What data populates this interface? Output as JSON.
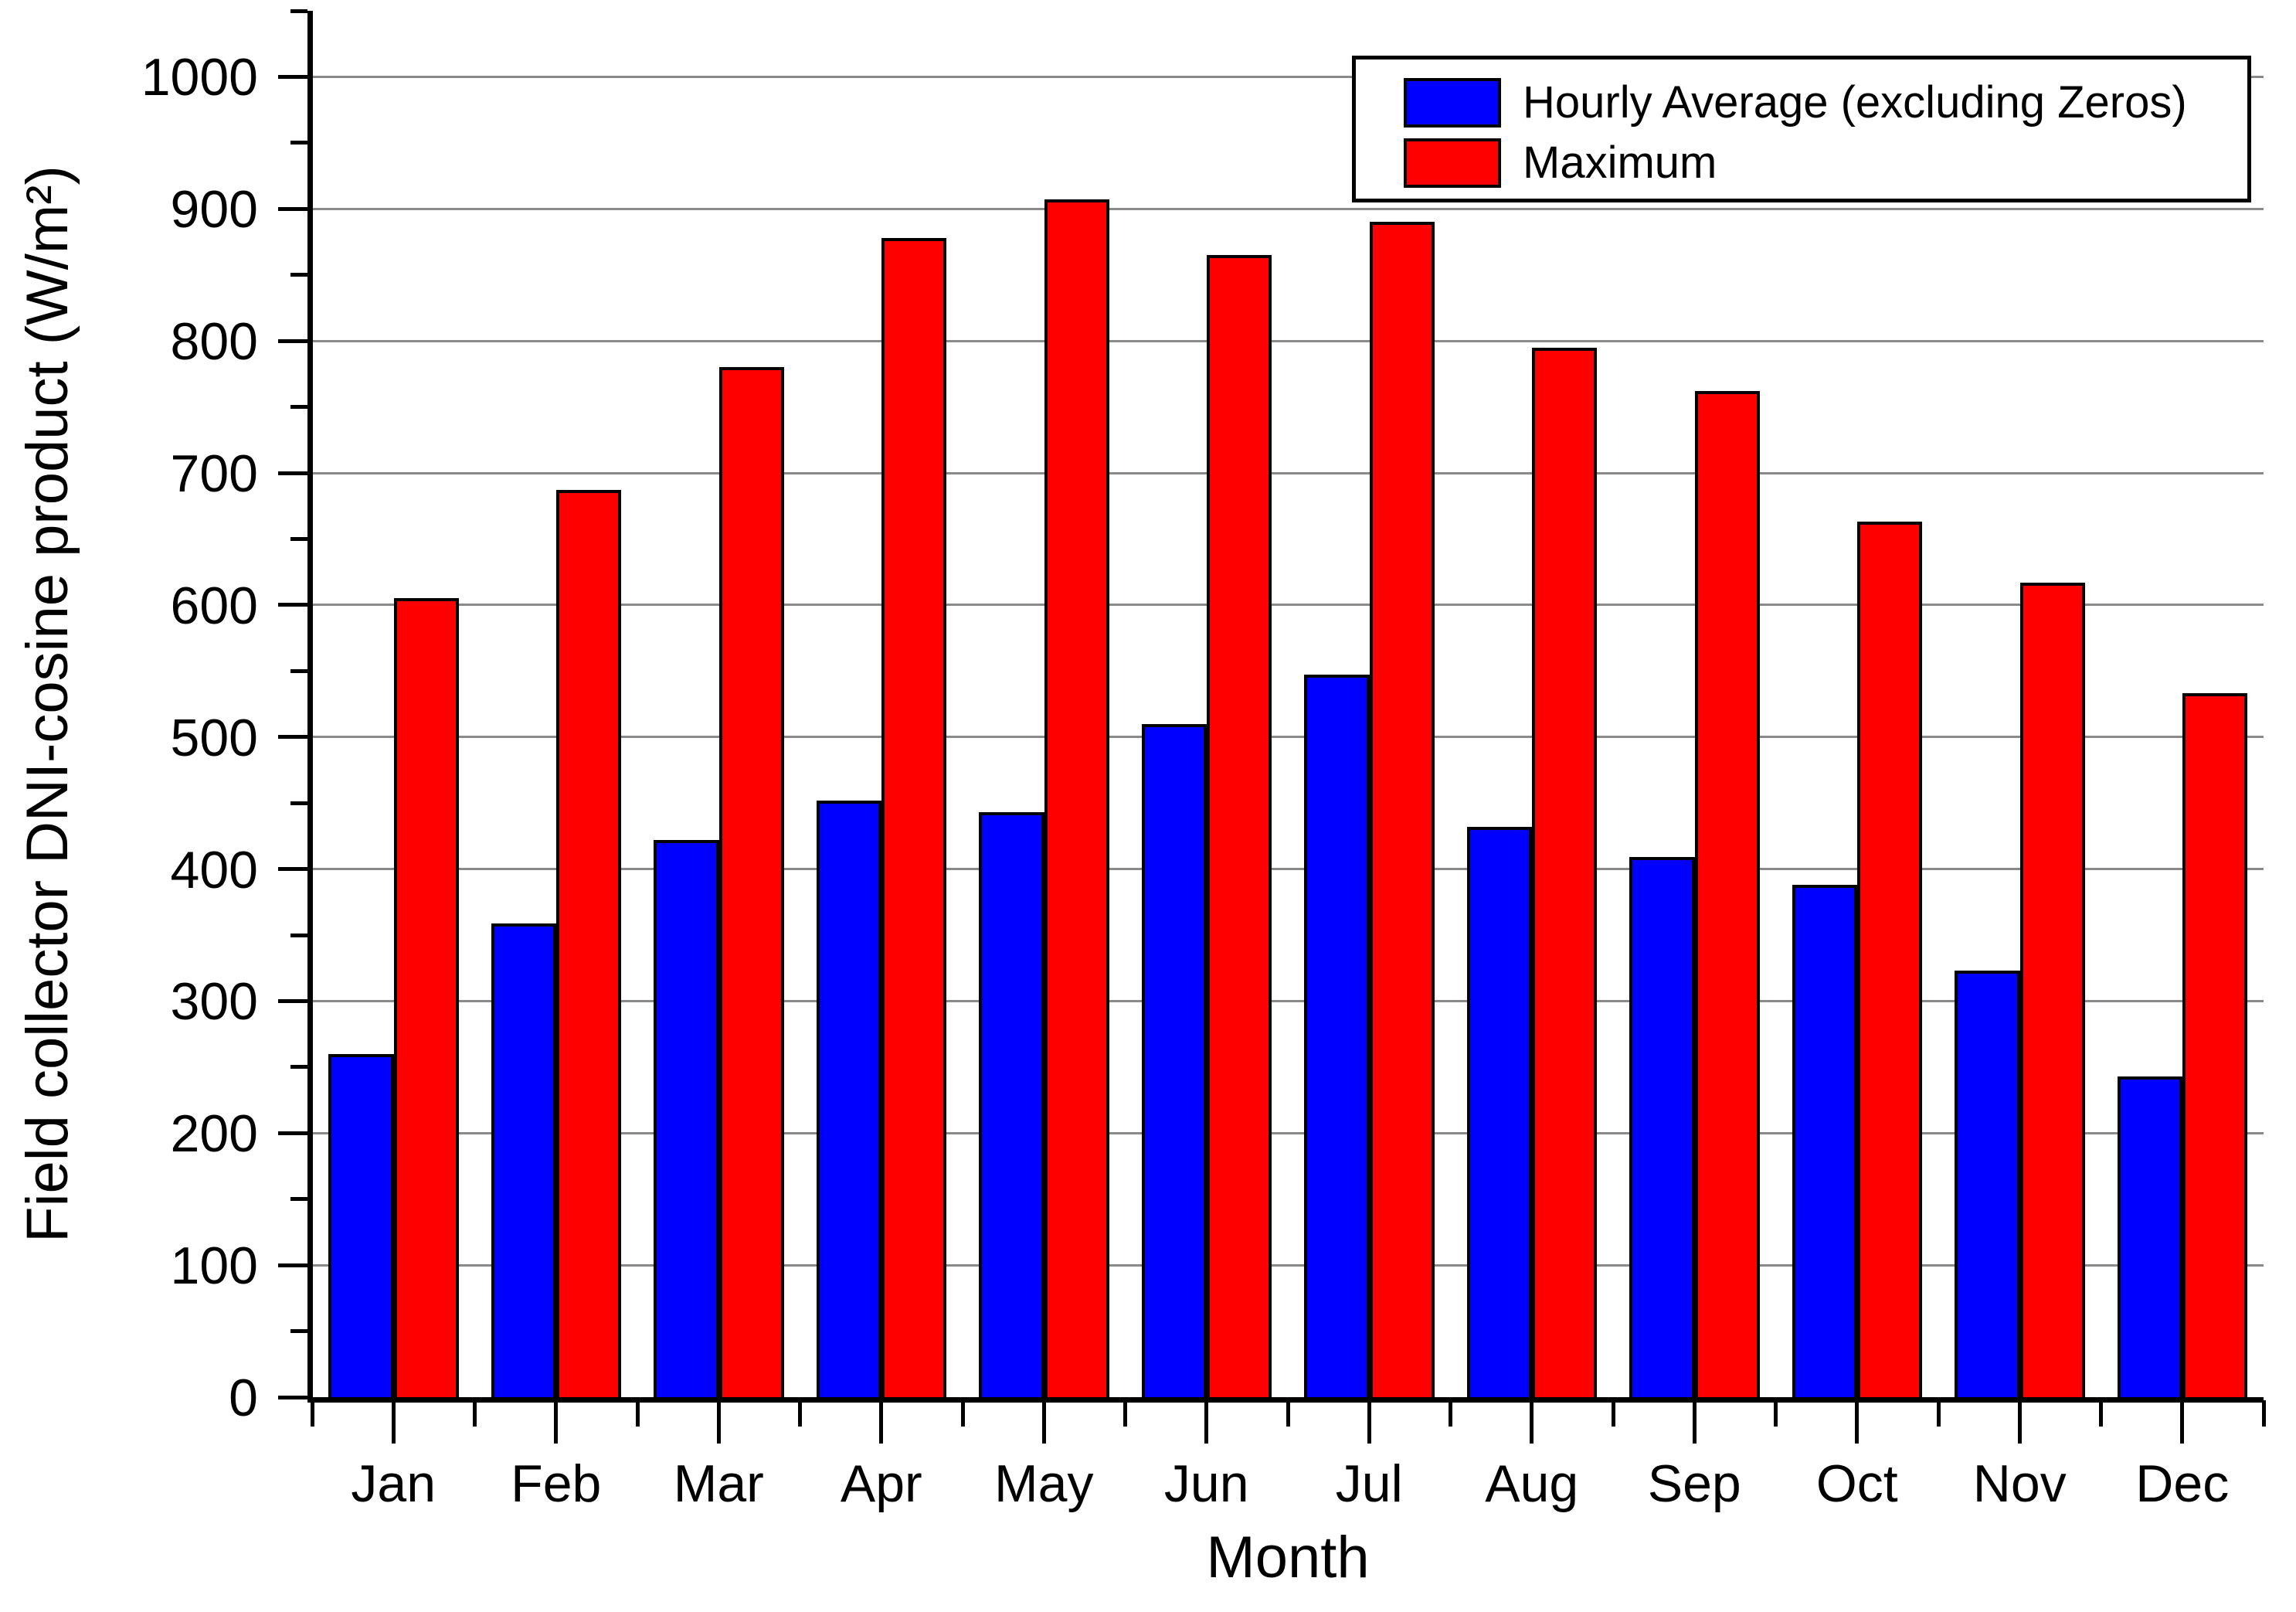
{
  "chart_data": {
    "type": "bar",
    "title": "",
    "xlabel": "Month",
    "ylabel": "Field collector DNI-cosine product (W/m²)",
    "categories": [
      "Jan",
      "Feb",
      "Mar",
      "Apr",
      "May",
      "Jun",
      "Jul",
      "Aug",
      "Sep",
      "Oct",
      "Nov",
      "Dec"
    ],
    "series": [
      {
        "name": "Hourly Average (excluding Zeros)",
        "color": "#0000ff",
        "values": [
          260,
          359,
          422,
          452,
          443,
          510,
          547,
          432,
          409,
          388,
          323,
          243
        ]
      },
      {
        "name": "Maximum",
        "color": "#ff0000",
        "values": [
          605,
          687,
          780,
          878,
          907,
          865,
          890,
          795,
          762,
          663,
          617,
          533
        ]
      }
    ],
    "ylim": [
      0,
      1050
    ],
    "y_major_step": 100,
    "y_minor_step": 50,
    "y_tick_labels": [
      "0",
      "100",
      "200",
      "300",
      "400",
      "500",
      "600",
      "700",
      "800",
      "900",
      "1000"
    ],
    "grid": "horizontal-major",
    "legend_position": "top-right",
    "bar_edge_color": "#000000",
    "gridline_color": "#8a8a8a",
    "background_color": "#ffffff"
  }
}
